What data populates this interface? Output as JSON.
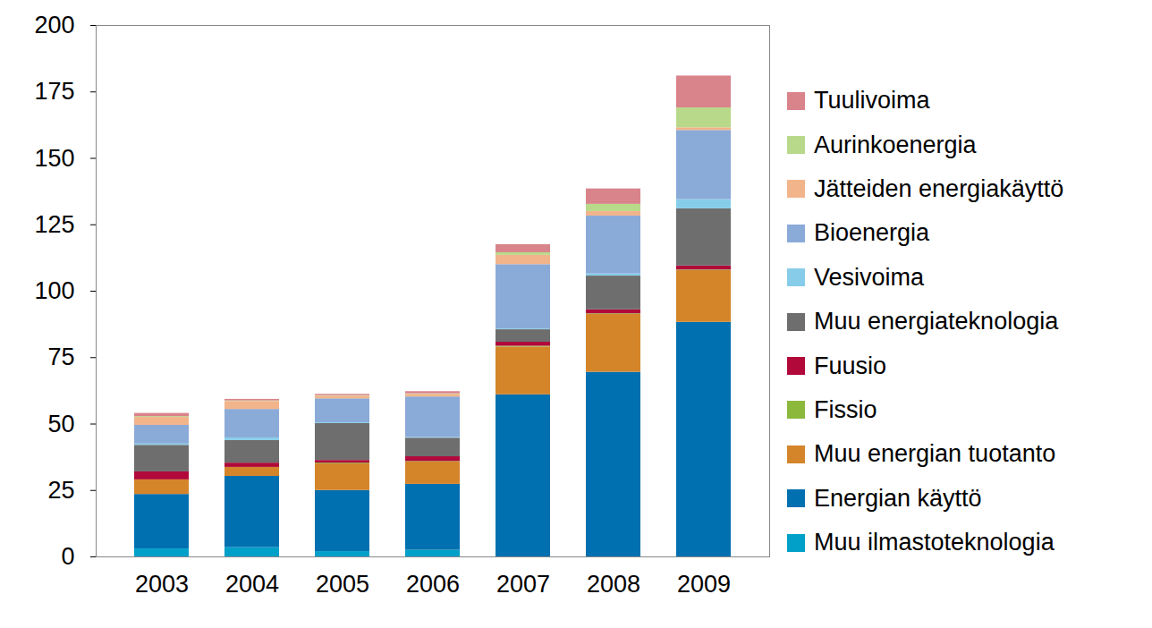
{
  "chart_data": {
    "type": "bar",
    "stacked": true,
    "legend": "right",
    "categories": [
      "2003",
      "2004",
      "2005",
      "2006",
      "2007",
      "2008",
      "2009"
    ],
    "ylim": [
      0,
      200
    ],
    "yticks": [
      0,
      25,
      50,
      75,
      100,
      125,
      150,
      175,
      200
    ],
    "series": [
      {
        "name": "Muu ilmastoteknologia",
        "color": "#00a0c8",
        "values": [
          3,
          3.5,
          2,
          2.5,
          0,
          0,
          0
        ]
      },
      {
        "name": "Energian käyttö",
        "color": "#0070b0",
        "values": [
          20.5,
          26.8,
          23,
          24.8,
          61,
          69.5,
          88.3
        ]
      },
      {
        "name": "Muu energian tuotanto",
        "color": "#d4852a",
        "values": [
          5.5,
          3.4,
          10,
          8.4,
          18,
          21.8,
          19.5
        ]
      },
      {
        "name": "Fissio",
        "color": "#8cb83c",
        "values": [
          0,
          0,
          0.3,
          0.2,
          0.3,
          0.2,
          0.2
        ]
      },
      {
        "name": "Fuusio",
        "color": "#b0093a",
        "values": [
          3,
          1.6,
          1,
          1.8,
          1.5,
          1.5,
          1.5
        ]
      },
      {
        "name": "Muu energiateknologia",
        "color": "#6e6e6e",
        "values": [
          10,
          8.5,
          13.9,
          7,
          4.7,
          12.7,
          21.5
        ]
      },
      {
        "name": "Vesivoima",
        "color": "#87cde9",
        "values": [
          0.5,
          1,
          0.3,
          0.3,
          0.3,
          0.8,
          3.5
        ]
      },
      {
        "name": "Bioenergia",
        "color": "#8aaad8",
        "values": [
          7,
          10.7,
          9,
          15.2,
          24.2,
          21.8,
          26
        ]
      },
      {
        "name": "Jätteiden energiakäyttö",
        "color": "#f2b48a",
        "values": [
          3,
          3,
          1,
          1,
          3.5,
          1.7,
          1
        ]
      },
      {
        "name": "Aurinkoenergia",
        "color": "#b8d98a",
        "values": [
          0.3,
          0.2,
          0.2,
          0.2,
          1,
          2.7,
          7.5
        ]
      },
      {
        "name": "Tuulivoima",
        "color": "#d9838b",
        "values": [
          1.2,
          0.6,
          0.5,
          0.8,
          3,
          5.8,
          12
        ]
      }
    ]
  }
}
